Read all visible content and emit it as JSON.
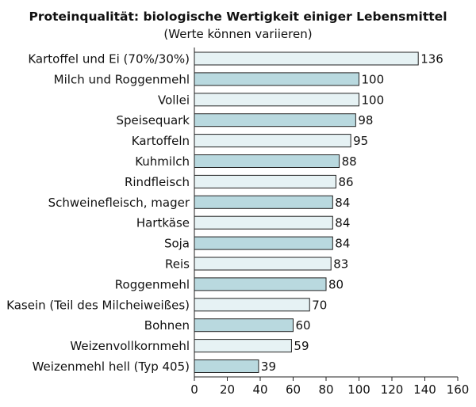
{
  "chart_data": {
    "type": "bar",
    "orientation": "horizontal",
    "title": "Proteinqualität: biologische Wertigkeit einiger Lebensmittel",
    "subtitle": "(Werte können variieren)",
    "categories": [
      "Kartoffel und Ei (70%/30%)",
      "Milch und Roggenmehl",
      "Vollei",
      "Speisequark",
      "Kartoffeln",
      "Kuhmilch",
      "Rindfleisch",
      "Schweinefleisch, mager",
      "Hartkäse",
      "Soja",
      "Reis",
      "Roggenmehl",
      "Kasein (Teil des Milcheiweißes)",
      "Bohnen",
      "Weizenvollkornmehl",
      "Weizenmehl hell (Typ 405)"
    ],
    "values": [
      136,
      100,
      100,
      98,
      95,
      88,
      86,
      84,
      84,
      84,
      83,
      80,
      70,
      60,
      59,
      39
    ],
    "xlim": [
      0,
      160
    ],
    "xticks": [
      0,
      20,
      40,
      60,
      80,
      100,
      120,
      140,
      160
    ],
    "xlabel": "",
    "ylabel": "",
    "grid": false,
    "colors": {
      "light": "#e6f2f4",
      "dark": "#b9d9df",
      "stroke": "#222222"
    }
  }
}
